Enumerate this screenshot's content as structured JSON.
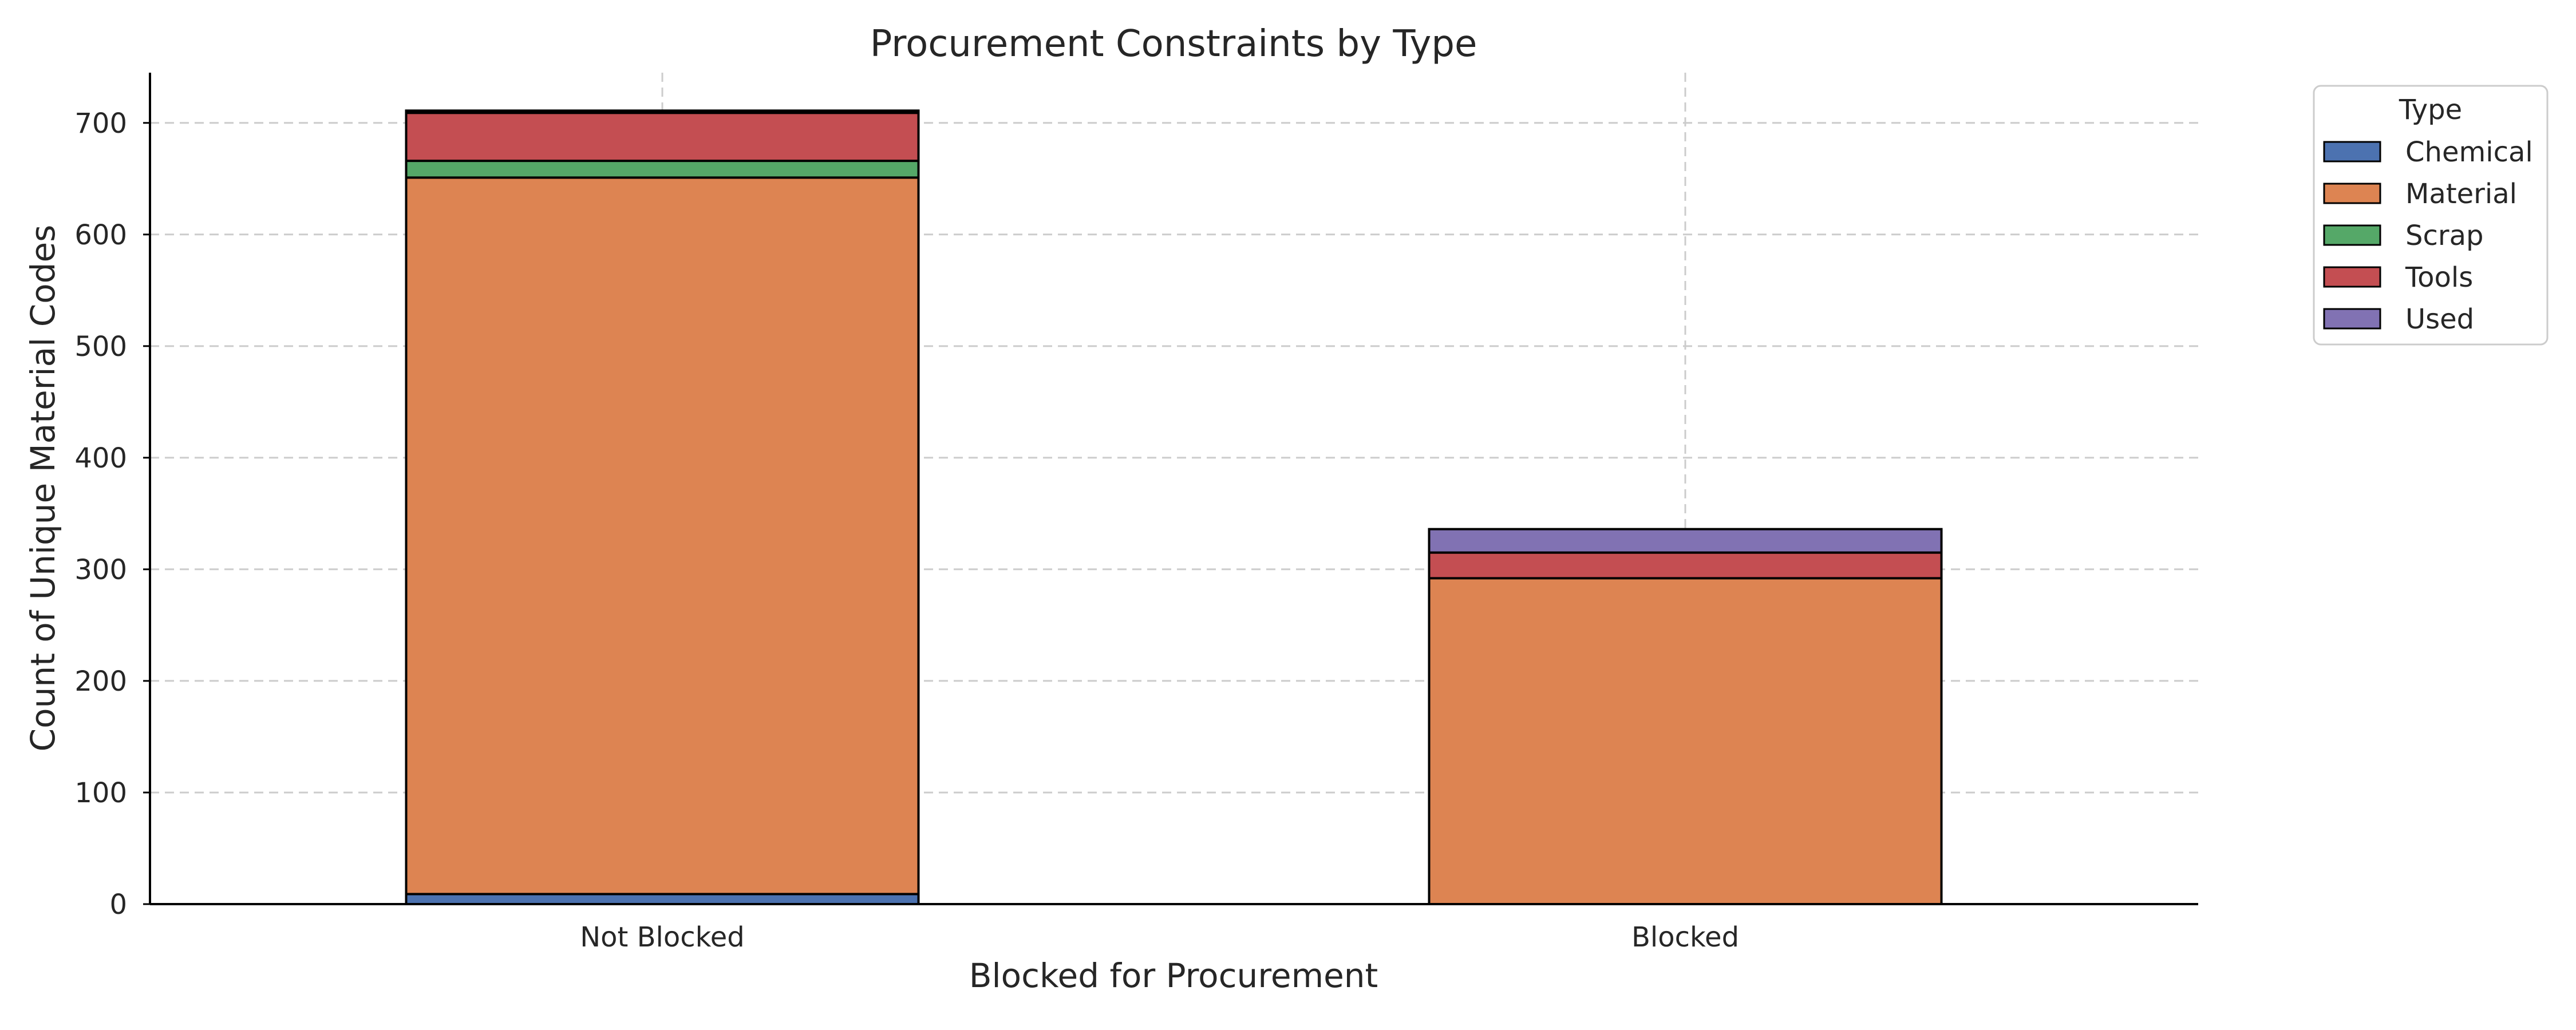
{
  "chart_data": {
    "type": "bar",
    "stacked": true,
    "title": "Procurement Constraints by Type",
    "xlabel": "Blocked for Procurement",
    "ylabel": "Count of Unique Material Codes",
    "categories": [
      "Not Blocked",
      "Blocked"
    ],
    "ylim": [
      0,
      745
    ],
    "yticks": [
      0,
      100,
      200,
      300,
      400,
      500,
      600,
      700
    ],
    "grid": true,
    "legend": {
      "title": "Type",
      "placement": "outside-top-right"
    },
    "series": [
      {
        "name": "Chemical",
        "color": "#4c72b0",
        "values": [
          9,
          0
        ]
      },
      {
        "name": "Material",
        "color": "#dd8452",
        "values": [
          642,
          292
        ]
      },
      {
        "name": "Scrap",
        "color": "#55a868",
        "values": [
          15,
          0
        ]
      },
      {
        "name": "Tools",
        "color": "#c44e52",
        "values": [
          43,
          23
        ]
      },
      {
        "name": "Used",
        "color": "#8172b3",
        "values": [
          2,
          21
        ]
      }
    ]
  }
}
